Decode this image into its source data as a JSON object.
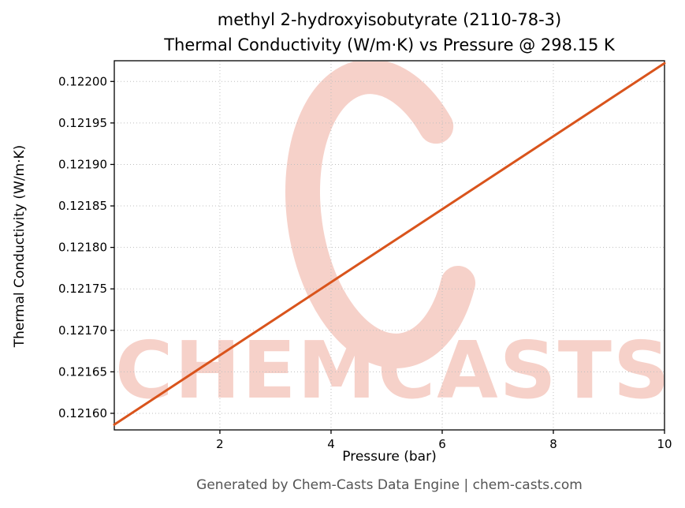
{
  "title": {
    "line1": "methyl 2-hydroxyisobutyrate (2110-78-3)",
    "line2": "Thermal Conductivity (W/m·K) vs Pressure @ 298.15 K"
  },
  "footer": {
    "text": "Generated by Chem-Casts Data Engine | chem-casts.com"
  },
  "watermark": {
    "text": "CHEMCASTS",
    "color": "#dd4b2e"
  },
  "chart_data": {
    "type": "line",
    "title": "methyl 2-hydroxyisobutyrate (2110-78-3) — Thermal Conductivity (W/m·K) vs Pressure @ 298.15 K",
    "xlabel": "Pressure (bar)",
    "ylabel": "Thermal Conductivity (W/m·K)",
    "x": [
      0.1,
      1,
      2,
      3,
      4,
      5,
      6,
      7,
      8,
      9,
      10
    ],
    "y": [
      0.1215864,
      0.121626,
      0.12167,
      0.121714,
      0.121758,
      0.121802,
      0.121846,
      0.12189,
      0.121934,
      0.121978,
      0.122022
    ],
    "xlim": [
      0.1,
      10
    ],
    "ylim": [
      0.12158,
      0.122025
    ],
    "xticks": [
      2,
      4,
      6,
      8,
      10
    ],
    "xtick_labels": [
      "2",
      "4",
      "6",
      "8",
      "10"
    ],
    "yticks": [
      0.1216,
      0.12165,
      0.1217,
      0.12175,
      0.1218,
      0.12185,
      0.1219,
      0.12195,
      0.122
    ],
    "ytick_labels": [
      "0.12160",
      "0.12165",
      "0.12170",
      "0.12175",
      "0.12180",
      "0.12185",
      "0.12190",
      "0.12195",
      "0.12200"
    ],
    "line_color": "#d9541c",
    "grid": true,
    "grid_style": "dotted",
    "legend": "none"
  }
}
